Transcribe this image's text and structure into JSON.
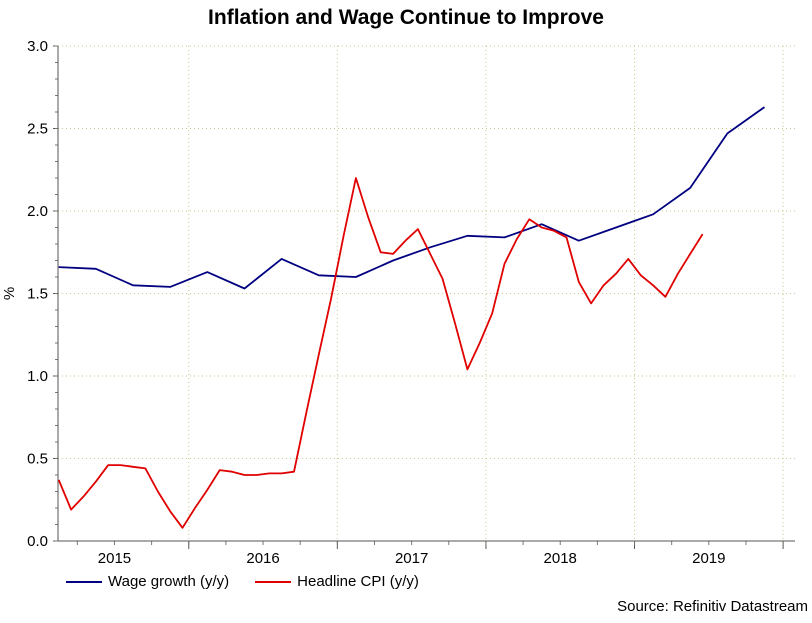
{
  "chart_data": {
    "type": "line",
    "title": "Inflation and Wage Continue to Improve",
    "ylabel": "%",
    "xlabel": "",
    "ylim": [
      0,
      3
    ],
    "yticks": [
      "0.0",
      "0.5",
      "1.0",
      "1.5",
      "2.0",
      "2.5",
      "3.0"
    ],
    "xticks": [
      {
        "label": "2015",
        "x": 2015.0
      },
      {
        "label": "2016",
        "x": 2016.0
      },
      {
        "label": "2017",
        "x": 2017.0
      },
      {
        "label": "2018",
        "x": 2018.0
      },
      {
        "label": "2019",
        "x": 2019.0
      }
    ],
    "xlim": [
      2014.62,
      2019.58
    ],
    "grid": true,
    "legend_position": "bottom-left",
    "series": [
      {
        "name": "Wage growth (y/y)",
        "color": "#000080",
        "points": [
          [
            2014.625,
            1.66
          ],
          [
            2014.875,
            1.65
          ],
          [
            2015.125,
            1.55
          ],
          [
            2015.375,
            1.54
          ],
          [
            2015.625,
            1.63
          ],
          [
            2015.875,
            1.53
          ],
          [
            2016.125,
            1.71
          ],
          [
            2016.375,
            1.61
          ],
          [
            2016.625,
            1.6
          ],
          [
            2016.875,
            1.7
          ],
          [
            2017.125,
            1.78
          ],
          [
            2017.375,
            1.85
          ],
          [
            2017.625,
            1.84
          ],
          [
            2017.875,
            1.92
          ],
          [
            2018.125,
            1.82
          ],
          [
            2018.375,
            1.9
          ],
          [
            2018.625,
            1.98
          ],
          [
            2018.875,
            2.14
          ],
          [
            2019.125,
            2.47
          ],
          [
            2019.375,
            2.63
          ]
        ]
      },
      {
        "name": "Headline CPI (y/y)",
        "color": "#e00000",
        "points": [
          [
            2014.625,
            0.37
          ],
          [
            2014.708,
            0.19
          ],
          [
            2014.792,
            0.27
          ],
          [
            2014.875,
            0.36
          ],
          [
            2014.958,
            0.46
          ],
          [
            2015.042,
            0.46
          ],
          [
            2015.125,
            0.45
          ],
          [
            2015.208,
            0.44
          ],
          [
            2015.292,
            0.3
          ],
          [
            2015.375,
            0.18
          ],
          [
            2015.458,
            0.08
          ],
          [
            2015.542,
            0.2
          ],
          [
            2015.625,
            0.31
          ],
          [
            2015.708,
            0.43
          ],
          [
            2015.792,
            0.42
          ],
          [
            2015.875,
            0.4
          ],
          [
            2015.958,
            0.4
          ],
          [
            2016.042,
            0.41
          ],
          [
            2016.125,
            0.41
          ],
          [
            2016.208,
            0.42
          ],
          [
            2016.292,
            0.78
          ],
          [
            2016.375,
            1.13
          ],
          [
            2016.458,
            1.47
          ],
          [
            2016.542,
            1.85
          ],
          [
            2016.625,
            2.2
          ],
          [
            2016.708,
            1.96
          ],
          [
            2016.792,
            1.75
          ],
          [
            2016.875,
            1.74
          ],
          [
            2016.958,
            1.82
          ],
          [
            2017.042,
            1.89
          ],
          [
            2017.125,
            1.74
          ],
          [
            2017.208,
            1.59
          ],
          [
            2017.292,
            1.32
          ],
          [
            2017.375,
            1.04
          ],
          [
            2017.458,
            1.2
          ],
          [
            2017.542,
            1.38
          ],
          [
            2017.625,
            1.68
          ],
          [
            2017.708,
            1.83
          ],
          [
            2017.792,
            1.95
          ],
          [
            2017.875,
            1.9
          ],
          [
            2017.958,
            1.88
          ],
          [
            2018.042,
            1.84
          ],
          [
            2018.125,
            1.57
          ],
          [
            2018.208,
            1.44
          ],
          [
            2018.292,
            1.55
          ],
          [
            2018.375,
            1.62
          ],
          [
            2018.458,
            1.71
          ],
          [
            2018.542,
            1.61
          ],
          [
            2018.625,
            1.55
          ],
          [
            2018.708,
            1.48
          ],
          [
            2018.792,
            1.62
          ],
          [
            2018.875,
            1.74
          ],
          [
            2018.958,
            1.86
          ]
        ]
      }
    ]
  },
  "source": "Source: Refinitiv Datastream"
}
